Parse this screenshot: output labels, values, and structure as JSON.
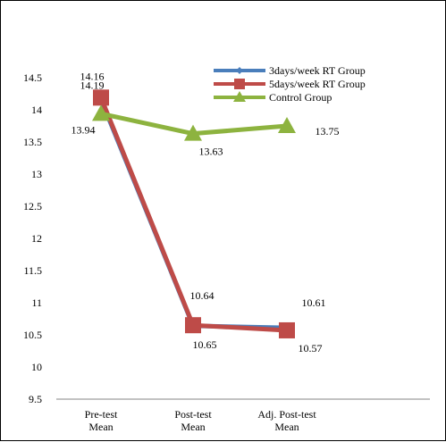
{
  "chart_data": {
    "type": "line",
    "categories": [
      "Pre-test Mean",
      "Post-test Mean",
      "Adj. Post-test Mean"
    ],
    "category_lines": [
      [
        "Pre-test",
        "Mean"
      ],
      [
        "Post-test",
        "Mean"
      ],
      [
        "Adj. Post-test",
        "Mean"
      ]
    ],
    "series": [
      {
        "name": "3days/week RT Group",
        "values": [
          14.16,
          10.64,
          10.61
        ],
        "color": "#4a7ebb",
        "marker": "diamond",
        "labels": [
          "14.16",
          "10.64",
          "10.61"
        ]
      },
      {
        "name": "5days/week RT Group",
        "values": [
          14.19,
          10.65,
          10.57
        ],
        "color": "#be4b48",
        "marker": "square",
        "labels": [
          "14.19",
          "10.65",
          "10.57"
        ]
      },
      {
        "name": "Control Group",
        "values": [
          13.94,
          13.63,
          13.75
        ],
        "color": "#8db33f",
        "marker": "triangle",
        "labels": [
          "13.94",
          "13.63",
          "13.75"
        ]
      }
    ],
    "ylim": [
      9.5,
      14.5
    ],
    "yticks": [
      "9.5",
      "10",
      "10.5",
      "11",
      "11.5",
      "12",
      "12.5",
      "13",
      "13.5",
      "14",
      "14.5"
    ],
    "legend": "top-right",
    "grid": false
  }
}
